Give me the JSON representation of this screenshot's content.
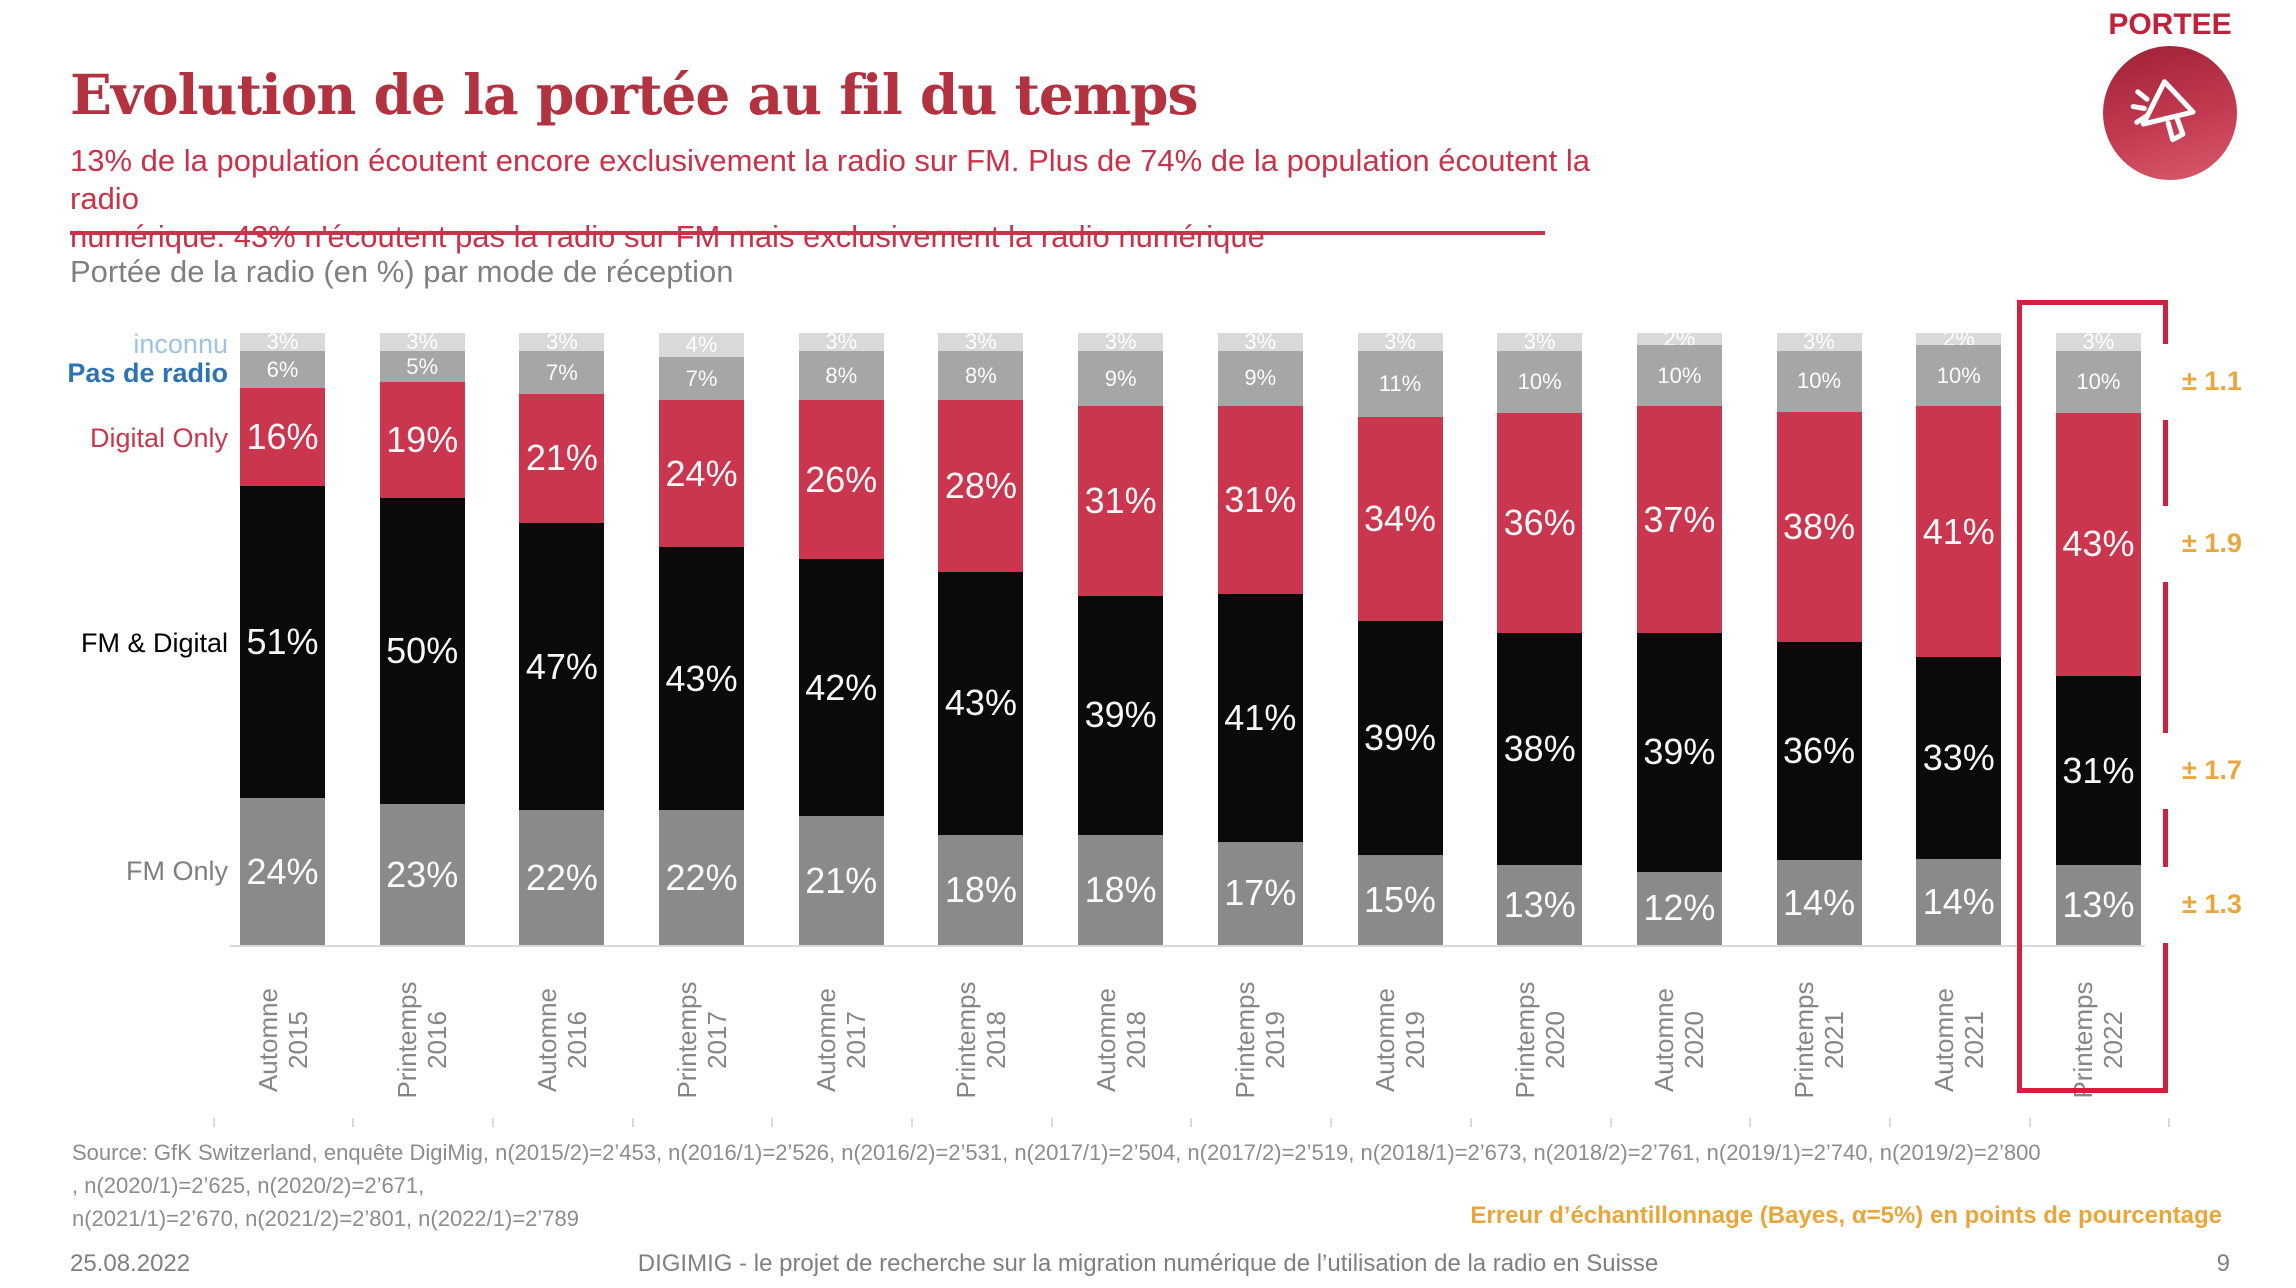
{
  "slide": {
    "title": "Evolution de la portée au fil du temps",
    "subtitle_line1": "13% de la population écoutent encore exclusivement la radio sur FM. Plus de 74% de la population écoutent la radio",
    "subtitle_line2": "numérique. 43% n'écoutent pas la radio sur FM mais exclusivement la radio numérique",
    "badge": {
      "label": "PORTEE",
      "icon": "megaphone-icon"
    },
    "chart_heading": "Portée de la radio (en %) par mode de réception",
    "source_line1": "Source: GfK Switzerland, enquête DigiMig, n(2015/2)=2’453, n(2016/1)=2’526, n(2016/2)=2’531, n(2017/1)=2’504, n(2017/2)=2’519, n(2018/1)=2’673, n(2018/2)=2’761, n(2019/1)=2’740, n(2019/2)=2’800 , n(2020/1)=2’625, n(2020/2)=2’671,",
    "source_line2": "n(2021/1)=2’670, n(2021/2)=2’801, n(2022/1)=2’789",
    "error_note": "Erreur d’échantillonnage (Bayes, α=5%) en points de pourcentage",
    "footer": {
      "date": "25.08.2022",
      "center": "DIGIMIG - le projet de recherche sur la migration numérique de l’utilisation de la radio en Suisse",
      "page": "9"
    }
  },
  "chart_data": {
    "type": "bar",
    "stacked": true,
    "unit": "%",
    "title": "Portée de la radio (en %) par mode de réception",
    "ylim": [
      0,
      100
    ],
    "grid": false,
    "legend_position": "left",
    "categories": [
      "Automne 2015",
      "Printemps 2016",
      "Automne 2016",
      "Printemps 2017",
      "Automne 2017",
      "Printemps 2018",
      "Automne 2018",
      "Printemps 2019",
      "Automne 2019",
      "Printemps 2020",
      "Automne 2020",
      "Printemps 2021",
      "Automne 2021",
      "Printemps 2022"
    ],
    "series": [
      {
        "name": "inconnu",
        "color": "#D9D9D9",
        "legend_color": "#9DC3E6",
        "values": [
          3,
          3,
          3,
          4,
          3,
          3,
          3,
          3,
          3,
          3,
          2,
          3,
          2,
          3
        ]
      },
      {
        "name": "Pas de radio",
        "color": "#A6A6A6",
        "legend_color": "#2E74B5",
        "values": [
          6,
          5,
          7,
          7,
          8,
          8,
          9,
          9,
          11,
          10,
          10,
          10,
          10,
          10
        ]
      },
      {
        "name": "Digital Only",
        "color": "#C9364D",
        "legend_color": "#C9364D",
        "values": [
          16,
          19,
          21,
          24,
          26,
          28,
          31,
          31,
          34,
          36,
          37,
          38,
          41,
          43
        ]
      },
      {
        "name": "FM & Digital",
        "color": "#0A0A0A",
        "legend_color": "#000000",
        "values": [
          51,
          50,
          47,
          43,
          42,
          43,
          39,
          41,
          39,
          38,
          39,
          36,
          33,
          31
        ]
      },
      {
        "name": "FM Only",
        "color": "#8A8A8A",
        "legend_color": "#7F7F7F",
        "values": [
          24,
          23,
          22,
          22,
          21,
          18,
          18,
          17,
          15,
          13,
          12,
          14,
          14,
          13
        ]
      }
    ],
    "highlight": {
      "category": "Printemps 2022",
      "index": 13,
      "box_color": "#CE2140"
    },
    "error_margins": {
      "labels": [
        "± 1.1",
        "± 1.9",
        "± 1.7",
        "± 1.3"
      ],
      "applies_to": [
        "Pas de radio",
        "Digital Only",
        "FM & Digital",
        "FM Only"
      ],
      "color": "#EBA73C"
    }
  }
}
